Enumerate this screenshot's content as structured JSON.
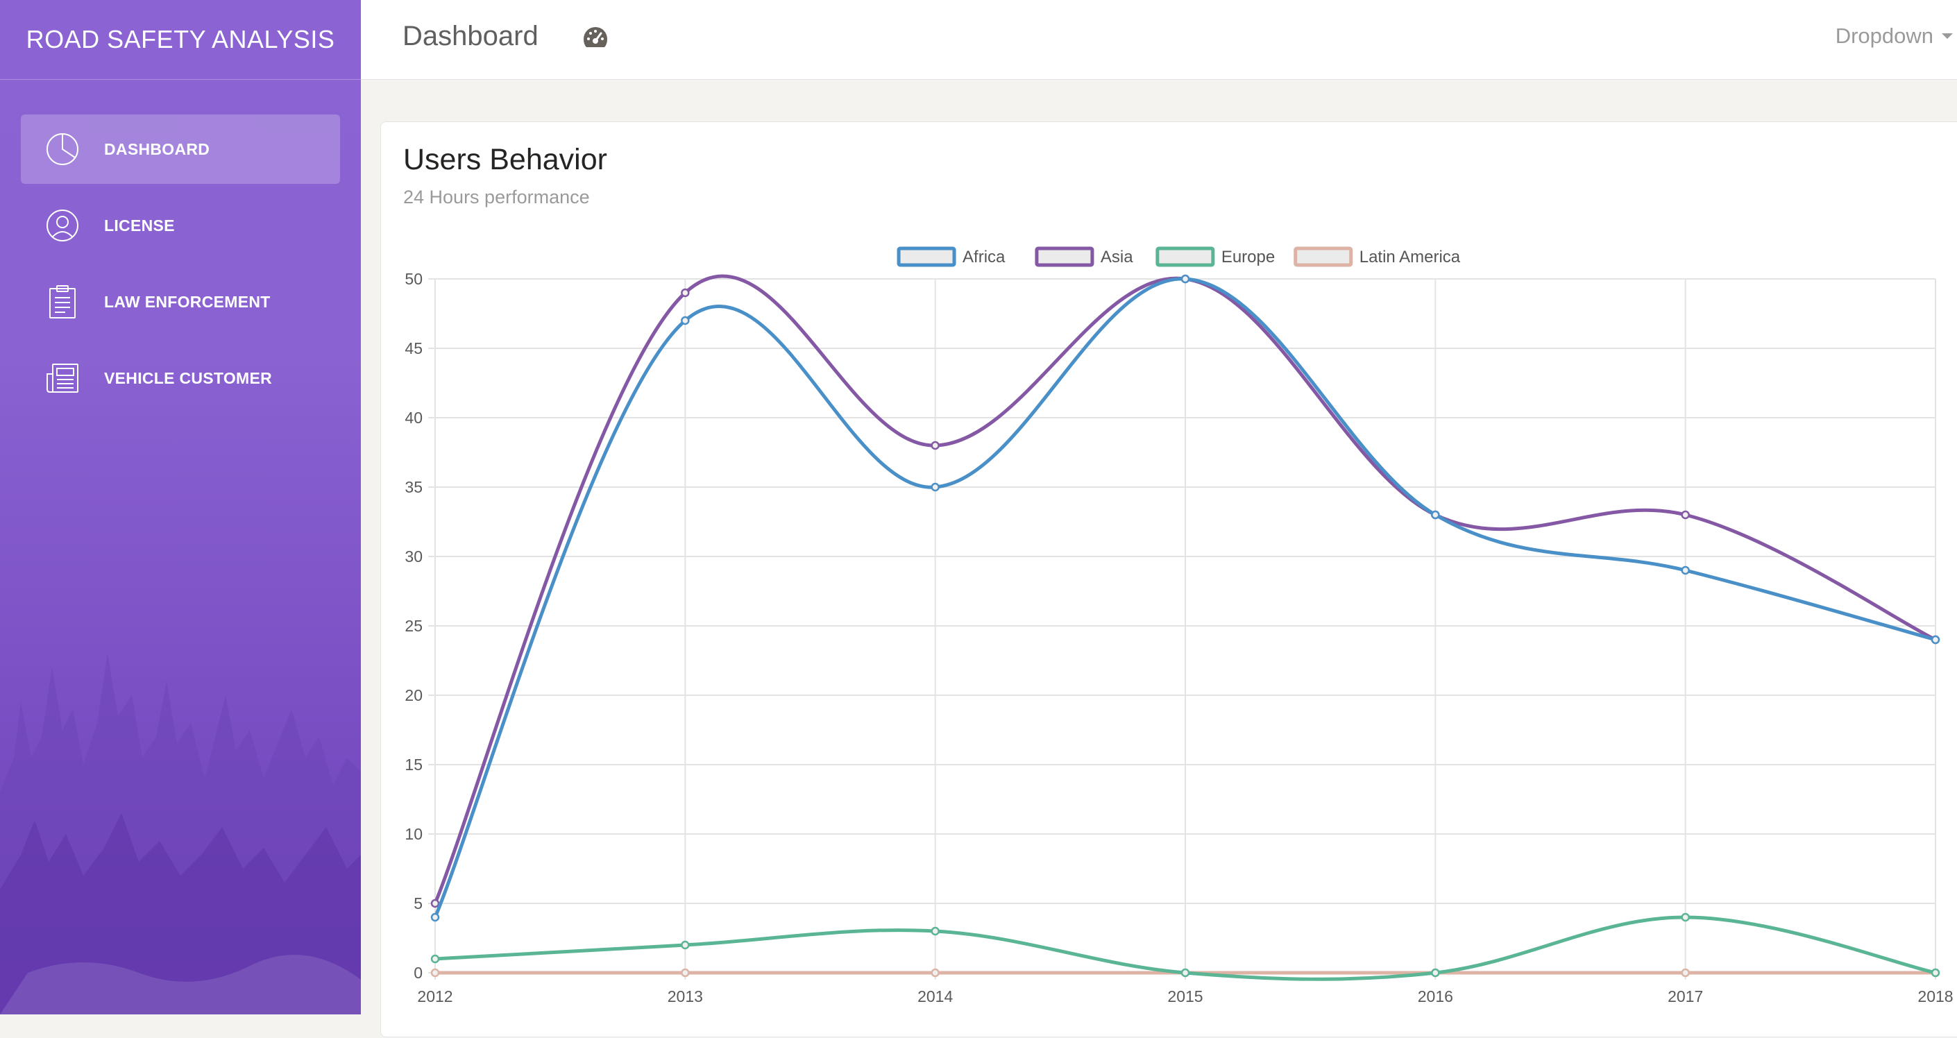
{
  "sidebar": {
    "brand": "ROAD SAFETY ANALYSIS",
    "items": [
      {
        "label": "DASHBOARD",
        "icon": "pie-chart-icon",
        "active": true
      },
      {
        "label": "LICENSE",
        "icon": "user-icon",
        "active": false
      },
      {
        "label": "LAW ENFORCEMENT",
        "icon": "clipboard-icon",
        "active": false
      },
      {
        "label": "VEHICLE CUSTOMER",
        "icon": "newspaper-icon",
        "active": false
      }
    ]
  },
  "header": {
    "title": "Dashboard",
    "icon": "dashboard-gauge-icon",
    "dropdown_label": "Dropdown"
  },
  "card": {
    "title": "Users Behavior",
    "subtitle": "24 Hours performance"
  },
  "colors": {
    "sidebar": "#8a62d1",
    "africa": "#4a90c8",
    "asia": "#8458a4",
    "europe": "#5ab594",
    "latin_america": "#dcb3a4"
  },
  "chart_data": {
    "type": "line",
    "categories": [
      "2012",
      "2013",
      "2014",
      "2015",
      "2016",
      "2017",
      "2018"
    ],
    "series": [
      {
        "name": "Africa",
        "color": "#4a90c8",
        "values": [
          4,
          47,
          35,
          50,
          33,
          29,
          24
        ]
      },
      {
        "name": "Asia",
        "color": "#8458a4",
        "values": [
          5,
          49,
          38,
          50,
          33,
          33,
          24
        ]
      },
      {
        "name": "Europe",
        "color": "#5ab594",
        "values": [
          1,
          2,
          3,
          0,
          0,
          4,
          0
        ]
      },
      {
        "name": "Latin America",
        "color": "#dcb3a4",
        "values": [
          0,
          0,
          0,
          0,
          0,
          0,
          0
        ]
      }
    ],
    "ylim": [
      0,
      50
    ],
    "yticks": [
      0,
      5,
      10,
      15,
      20,
      25,
      30,
      35,
      40,
      45,
      50
    ],
    "grid": true,
    "legend_position": "top",
    "curve": "smooth"
  }
}
